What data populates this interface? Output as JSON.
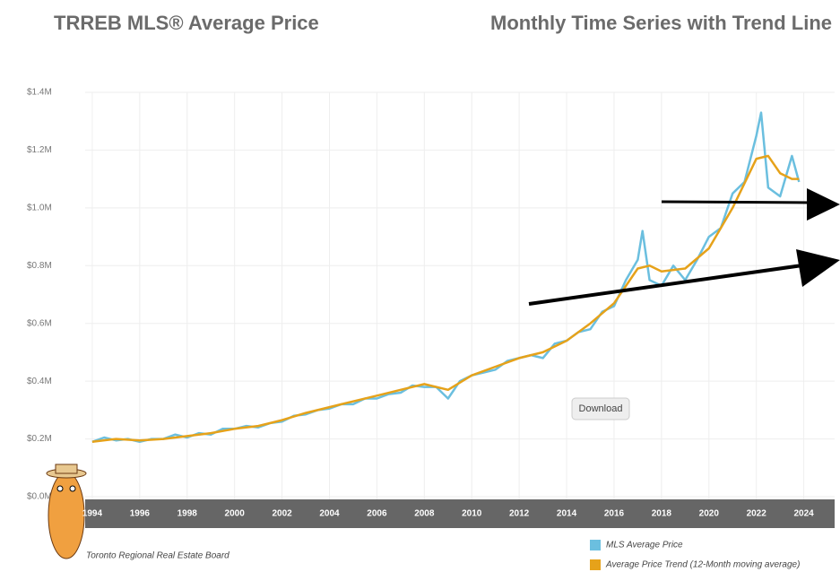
{
  "chart_data": {
    "type": "line",
    "title": "TRREB MLS® Average Price",
    "subtitle": "Monthly Time Series with Trend Line",
    "source": "Toronto Regional Real Estate Board",
    "button": "Download",
    "xlim": [
      1993.7,
      2025.3
    ],
    "xticks": [
      1994,
      1996,
      1998,
      2000,
      2002,
      2004,
      2006,
      2008,
      2010,
      2012,
      2014,
      2016,
      2018,
      2020,
      2022,
      2024
    ],
    "ylim": [
      0,
      1400000
    ],
    "yticks": [
      {
        "value": 0,
        "label": "$0.0M"
      },
      {
        "value": 200000,
        "label": "$0.2M"
      },
      {
        "value": 400000,
        "label": "$0.4M"
      },
      {
        "value": 600000,
        "label": "$0.6M"
      },
      {
        "value": 800000,
        "label": "$0.8M"
      },
      {
        "value": 1000000,
        "label": "$1.0M"
      },
      {
        "value": 1200000,
        "label": "$1.2M"
      },
      {
        "value": 1400000,
        "label": "$1.4M"
      }
    ],
    "grid": true,
    "series": [
      {
        "name": "MLS Average Price",
        "color": "#6bbfdf",
        "x": [
          1994,
          1994.5,
          1995,
          1995.5,
          1996,
          1996.5,
          1997,
          1997.5,
          1998,
          1998.5,
          1999,
          1999.5,
          2000,
          2000.5,
          2001,
          2001.5,
          2002,
          2002.5,
          2003,
          2003.5,
          2004,
          2004.5,
          2005,
          2005.5,
          2006,
          2006.5,
          2007,
          2007.5,
          2008,
          2008.5,
          2009,
          2009.5,
          2010,
          2010.5,
          2011,
          2011.5,
          2012,
          2012.5,
          2013,
          2013.5,
          2014,
          2014.5,
          2015,
          2015.5,
          2016,
          2016.5,
          2017,
          2017.2,
          2017.5,
          2018,
          2018.5,
          2019,
          2019.5,
          2020,
          2020.5,
          2021,
          2021.5,
          2022,
          2022.2,
          2022.5,
          2023,
          2023.5,
          2023.8
        ],
        "values": [
          190000,
          205000,
          195000,
          200000,
          190000,
          200000,
          200000,
          215000,
          205000,
          220000,
          215000,
          235000,
          235000,
          245000,
          240000,
          255000,
          260000,
          280000,
          285000,
          300000,
          305000,
          320000,
          320000,
          340000,
          340000,
          355000,
          360000,
          385000,
          380000,
          380000,
          340000,
          400000,
          420000,
          430000,
          440000,
          470000,
          480000,
          490000,
          480000,
          530000,
          540000,
          570000,
          580000,
          640000,
          660000,
          750000,
          820000,
          920000,
          750000,
          730000,
          800000,
          750000,
          820000,
          900000,
          930000,
          1050000,
          1090000,
          1250000,
          1330000,
          1070000,
          1040000,
          1180000,
          1090000
        ]
      },
      {
        "name": "Average Price Trend (12-Month moving average)",
        "color": "#e6a21a",
        "x": [
          1994,
          1995,
          1996,
          1997,
          1998,
          1999,
          2000,
          2001,
          2002,
          2003,
          2004,
          2005,
          2006,
          2007,
          2008,
          2009,
          2010,
          2011,
          2012,
          2013,
          2014,
          2015,
          2016,
          2017,
          2017.5,
          2018,
          2019,
          2020,
          2021,
          2022,
          2022.5,
          2023,
          2023.5,
          2023.8
        ],
        "values": [
          190000,
          200000,
          195000,
          200000,
          210000,
          220000,
          235000,
          245000,
          265000,
          290000,
          310000,
          330000,
          350000,
          370000,
          390000,
          370000,
          420000,
          450000,
          480000,
          500000,
          540000,
          600000,
          670000,
          790000,
          800000,
          780000,
          790000,
          860000,
          1000000,
          1170000,
          1180000,
          1120000,
          1100000,
          1100000
        ]
      }
    ]
  }
}
